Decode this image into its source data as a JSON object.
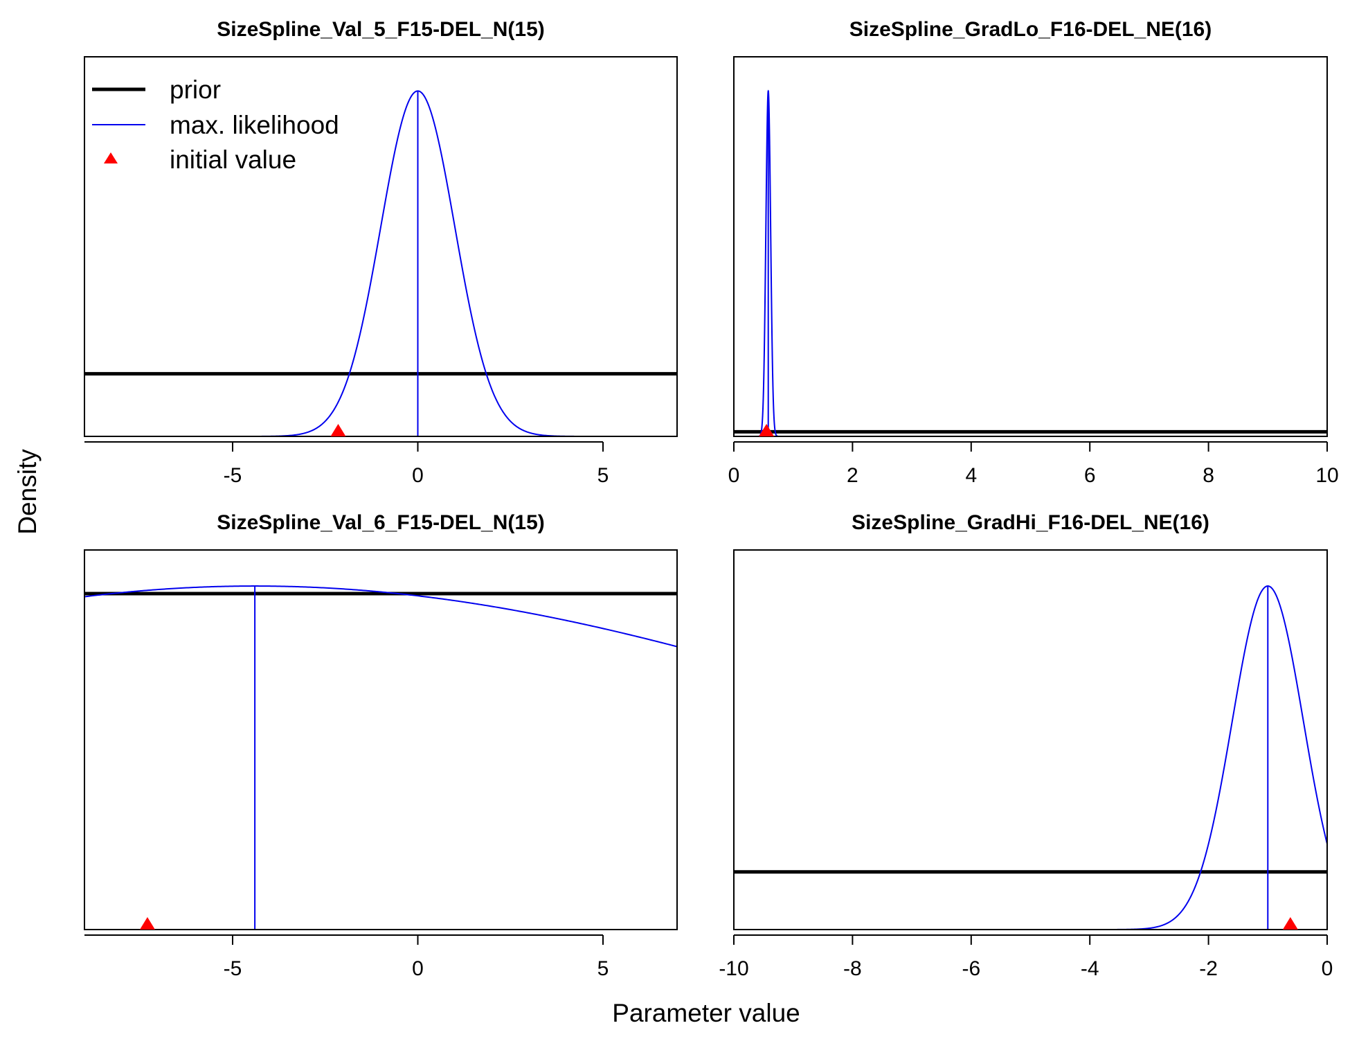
{
  "figure": {
    "ylabel": "Density",
    "xlabel": "Parameter value"
  },
  "legend": {
    "placement": "top-left of first panel",
    "items": [
      {
        "label": "prior",
        "color": "#000000",
        "kind": "thick-line"
      },
      {
        "label": "max. likelihood",
        "color": "#0000ee",
        "kind": "thin-line"
      },
      {
        "label": "initial value",
        "color": "#ff0000",
        "kind": "triangle"
      }
    ]
  },
  "colors": {
    "prior": "#000000",
    "mle": "#0000ee",
    "initial": "#ff0000"
  },
  "chart_data": [
    {
      "type": "line",
      "title": "SizeSpline_Val_5_F15-DEL_N(15)",
      "xlim": [
        -9,
        7
      ],
      "xticks": [
        -5,
        0,
        5
      ],
      "xtick_labels": [
        "-5",
        "0",
        "5"
      ],
      "ylim": [
        0,
        1
      ],
      "prior_level": 0.165,
      "mle": {
        "mean": 0,
        "sd": 1,
        "peak": 0.91
      },
      "mle_value": 0,
      "initial_value": -2.15,
      "curve_range": [
        -4.5,
        4.5
      ]
    },
    {
      "type": "line",
      "title": "SizeSpline_GradLo_F16-DEL_NE(16)",
      "xlim": [
        0,
        10
      ],
      "xticks": [
        0,
        2,
        4,
        6,
        8,
        10
      ],
      "xtick_labels": [
        "0",
        "2",
        "4",
        "6",
        "8",
        "10"
      ],
      "ylim": [
        0,
        1
      ],
      "prior_level": 0.012,
      "mle": {
        "mean": 0.58,
        "sd": 0.04,
        "peak": 0.91
      },
      "mle_value": 0.58,
      "initial_value": 0.55,
      "curve_range": [
        0.42,
        0.74
      ]
    },
    {
      "type": "line",
      "title": "SizeSpline_Val_6_F15-DEL_N(15)",
      "xlim": [
        -9,
        7
      ],
      "xticks": [
        -5,
        0,
        5
      ],
      "xtick_labels": [
        "-5",
        "0",
        "5"
      ],
      "ylim": [
        0,
        1
      ],
      "prior_level": 0.885,
      "mle": {
        "mean": -4.4,
        "sd": 18.3,
        "peak": 0.905
      },
      "mle_value": -4.4,
      "initial_value": -7.3,
      "curve_range": [
        -9,
        7
      ]
    },
    {
      "type": "line",
      "title": "SizeSpline_GradHi_F16-DEL_NE(16)",
      "xlim": [
        -10,
        0
      ],
      "xticks": [
        -10,
        -8,
        -6,
        -4,
        -2,
        0
      ],
      "xtick_labels": [
        "-10",
        "-8",
        "-6",
        "-4",
        "-2",
        "0"
      ],
      "ylim": [
        0,
        1
      ],
      "prior_level": 0.152,
      "mle": {
        "mean": -1.0,
        "sd": 0.6,
        "peak": 0.905
      },
      "mle_value": -1.0,
      "initial_value": -0.62,
      "curve_range": [
        -3.7,
        0
      ]
    }
  ]
}
